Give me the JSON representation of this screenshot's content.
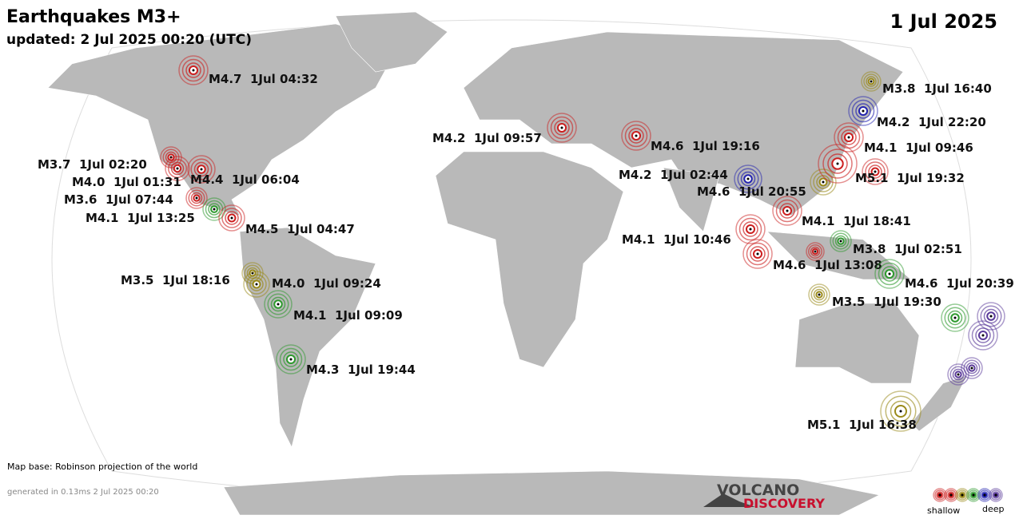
{
  "header": {
    "title": "Earthquakes M3+",
    "updated": "updated:  2 Jul 2025 00:20 (UTC)",
    "date": "1 Jul 2025"
  },
  "quakes": [
    {
      "label": "M4.7  1Jul 04:32"
    },
    {
      "label": "M3.7  1Jul 02:20"
    },
    {
      "label": "M4.0  1Jul 01:31"
    },
    {
      "label": "M4.4  1Jul 06:04"
    },
    {
      "label": "M3.6  1Jul 07:44"
    },
    {
      "label": "M4.1  1Jul 13:25"
    },
    {
      "label": "M4.5  1Jul 04:47"
    },
    {
      "label": "M3.5  1Jul 18:16"
    },
    {
      "label": "M4.0  1Jul 09:24"
    },
    {
      "label": "M4.1  1Jul 09:09"
    },
    {
      "label": "M4.3  1Jul 19:44"
    },
    {
      "label": "M4.2  1Jul 09:57"
    },
    {
      "label": "M4.6  1Jul 19:16"
    },
    {
      "label": "M4.2  1Jul 02:44"
    },
    {
      "label": "M4.6  1Jul 20:55"
    },
    {
      "label": "M3.8  1Jul 16:40"
    },
    {
      "label": "M4.2  1Jul 22:20"
    },
    {
      "label": "M4.1  1Jul 09:46"
    },
    {
      "label": "M5.1  1Jul 19:32"
    },
    {
      "label": "M4.1  1Jul 18:41"
    },
    {
      "label": "M4.1  1Jul 10:46"
    },
    {
      "label": "M3.8  1Jul 02:51"
    },
    {
      "label": "M4.6  1Jul 13:08"
    },
    {
      "label": "M4.6  1Jul 20:39"
    },
    {
      "label": "M3.5  1Jul 19:30"
    },
    {
      "label": "M5.1  1Jul 16:38"
    }
  ],
  "footer": {
    "map_base": "Map base: Robinson projection of the world",
    "generated": "generated in 0.13ms  2 Jul 2025 00:20"
  },
  "logo": {
    "line1": "VOLCANO",
    "line2": "DISCOVERY"
  },
  "legend": {
    "shallow": "shallow",
    "deep": "deep"
  }
}
